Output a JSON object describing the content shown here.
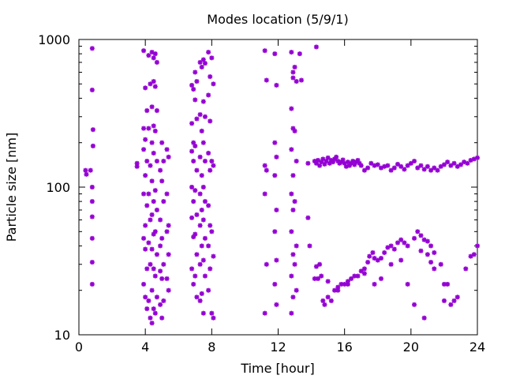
{
  "chart_data": {
    "type": "scatter",
    "title": "Modes location (5/9/1)",
    "xlabel": "Time [hour]",
    "ylabel": "Particle size [nm]",
    "xlim": [
      0,
      24
    ],
    "ylim": [
      10,
      1000
    ],
    "yscale": "log",
    "grid": false,
    "legend": "none",
    "marker_color": "#9400d3",
    "x_ticks": [
      0,
      4,
      8,
      12,
      16,
      20,
      24
    ],
    "x_tick_labels": [
      "0",
      "4",
      "8",
      "12",
      "16",
      "20",
      "24"
    ],
    "y_ticks": [
      10,
      100,
      1000
    ],
    "y_tick_labels": [
      "10",
      "100",
      "1000"
    ],
    "points": [
      [
        0.4,
        130
      ],
      [
        0.45,
        122
      ],
      [
        0.7,
        130
      ],
      [
        0.8,
        870
      ],
      [
        0.8,
        455
      ],
      [
        0.85,
        245
      ],
      [
        0.85,
        190
      ],
      [
        0.8,
        100
      ],
      [
        0.8,
        80
      ],
      [
        0.8,
        63
      ],
      [
        0.8,
        45
      ],
      [
        0.8,
        31
      ],
      [
        0.8,
        22
      ],
      [
        3.5,
        145
      ],
      [
        3.5,
        138
      ],
      [
        3.9,
        840
      ],
      [
        4.0,
        470
      ],
      [
        4.1,
        330
      ],
      [
        3.9,
        250
      ],
      [
        4.0,
        210
      ],
      [
        3.9,
        180
      ],
      [
        4.1,
        150
      ],
      [
        4.0,
        120
      ],
      [
        3.9,
        90
      ],
      [
        4.1,
        75
      ],
      [
        4.0,
        55
      ],
      [
        3.9,
        45
      ],
      [
        4.0,
        38
      ],
      [
        4.1,
        28
      ],
      [
        3.9,
        22
      ],
      [
        4.0,
        18
      ],
      [
        4.1,
        15
      ],
      [
        4.2,
        780
      ],
      [
        4.3,
        500
      ],
      [
        4.2,
        250
      ],
      [
        4.3,
        140
      ],
      [
        4.2,
        90
      ],
      [
        4.3,
        60
      ],
      [
        4.2,
        42
      ],
      [
        4.3,
        30
      ],
      [
        4.2,
        17
      ],
      [
        4.3,
        13
      ],
      [
        4.4,
        820
      ],
      [
        4.5,
        750
      ],
      [
        4.5,
        520
      ],
      [
        4.4,
        350
      ],
      [
        4.5,
        260
      ],
      [
        4.4,
        200
      ],
      [
        4.5,
        170
      ],
      [
        4.4,
        110
      ],
      [
        4.5,
        80
      ],
      [
        4.4,
        65
      ],
      [
        4.5,
        48
      ],
      [
        4.4,
        38
      ],
      [
        4.5,
        28
      ],
      [
        4.4,
        20
      ],
      [
        4.5,
        15
      ],
      [
        4.4,
        12
      ],
      [
        4.6,
        800
      ],
      [
        4.7,
        700
      ],
      [
        4.6,
        480
      ],
      [
        4.7,
        330
      ],
      [
        4.6,
        240
      ],
      [
        4.7,
        150
      ],
      [
        4.6,
        95
      ],
      [
        4.7,
        70
      ],
      [
        4.6,
        50
      ],
      [
        4.7,
        35
      ],
      [
        4.6,
        25
      ],
      [
        4.7,
        18
      ],
      [
        4.6,
        14
      ],
      [
        4.9,
        130
      ],
      [
        4.9,
        60
      ],
      [
        4.9,
        40
      ],
      [
        4.9,
        27
      ],
      [
        4.9,
        16
      ],
      [
        5.0,
        200
      ],
      [
        5.1,
        150
      ],
      [
        5.0,
        110
      ],
      [
        5.1,
        80
      ],
      [
        5.0,
        45
      ],
      [
        5.1,
        30
      ],
      [
        5.0,
        24
      ],
      [
        5.1,
        17
      ],
      [
        5.0,
        13
      ],
      [
        5.3,
        180
      ],
      [
        5.4,
        160
      ],
      [
        5.3,
        90
      ],
      [
        5.4,
        55
      ],
      [
        5.3,
        50
      ],
      [
        5.4,
        35
      ],
      [
        5.3,
        24
      ],
      [
        5.4,
        20
      ],
      [
        6.8,
        490
      ],
      [
        6.9,
        460
      ],
      [
        6.8,
        270
      ],
      [
        6.9,
        200
      ],
      [
        6.8,
        175
      ],
      [
        6.9,
        150
      ],
      [
        6.8,
        100
      ],
      [
        6.9,
        80
      ],
      [
        6.8,
        62
      ],
      [
        6.9,
        46
      ],
      [
        6.8,
        28
      ],
      [
        6.9,
        22
      ],
      [
        7.0,
        600
      ],
      [
        7.1,
        520
      ],
      [
        7.0,
        390
      ],
      [
        7.1,
        290
      ],
      [
        7.0,
        190
      ],
      [
        7.1,
        130
      ],
      [
        7.0,
        95
      ],
      [
        7.1,
        65
      ],
      [
        7.0,
        48
      ],
      [
        7.1,
        35
      ],
      [
        7.0,
        25
      ],
      [
        7.1,
        18
      ],
      [
        7.3,
        700
      ],
      [
        7.4,
        650
      ],
      [
        7.3,
        310
      ],
      [
        7.4,
        240
      ],
      [
        7.3,
        160
      ],
      [
        7.4,
        120
      ],
      [
        7.3,
        90
      ],
      [
        7.4,
        70
      ],
      [
        7.3,
        55
      ],
      [
        7.4,
        40
      ],
      [
        7.3,
        30
      ],
      [
        7.4,
        19
      ],
      [
        7.3,
        17
      ],
      [
        7.5,
        730
      ],
      [
        7.6,
        690
      ],
      [
        7.5,
        380
      ],
      [
        7.6,
        300
      ],
      [
        7.5,
        200
      ],
      [
        7.6,
        150
      ],
      [
        7.5,
        100
      ],
      [
        7.6,
        80
      ],
      [
        7.5,
        60
      ],
      [
        7.6,
        45
      ],
      [
        7.5,
        32
      ],
      [
        7.6,
        25
      ],
      [
        7.5,
        14
      ],
      [
        7.8,
        820
      ],
      [
        7.9,
        560
      ],
      [
        7.8,
        420
      ],
      [
        7.9,
        280
      ],
      [
        7.8,
        170
      ],
      [
        7.9,
        130
      ],
      [
        7.8,
        75
      ],
      [
        7.9,
        55
      ],
      [
        7.8,
        40
      ],
      [
        7.9,
        28
      ],
      [
        7.8,
        20
      ],
      [
        8.0,
        750
      ],
      [
        8.1,
        500
      ],
      [
        8.0,
        150
      ],
      [
        8.1,
        140
      ],
      [
        8.0,
        50
      ],
      [
        8.1,
        34
      ],
      [
        8.0,
        14
      ],
      [
        8.1,
        13
      ],
      [
        11.2,
        840
      ],
      [
        11.3,
        530
      ],
      [
        11.2,
        140
      ],
      [
        11.3,
        130
      ],
      [
        11.2,
        90
      ],
      [
        11.3,
        30
      ],
      [
        11.2,
        14
      ],
      [
        11.8,
        800
      ],
      [
        11.9,
        490
      ],
      [
        11.8,
        200
      ],
      [
        11.9,
        160
      ],
      [
        11.8,
        120
      ],
      [
        11.9,
        70
      ],
      [
        11.8,
        50
      ],
      [
        11.9,
        32
      ],
      [
        11.8,
        22
      ],
      [
        11.9,
        16
      ],
      [
        12.8,
        820
      ],
      [
        12.9,
        600
      ],
      [
        12.9,
        550
      ],
      [
        12.8,
        340
      ],
      [
        12.9,
        250
      ],
      [
        12.8,
        180
      ],
      [
        12.9,
        120
      ],
      [
        12.8,
        90
      ],
      [
        12.9,
        70
      ],
      [
        12.8,
        50
      ],
      [
        12.9,
        35
      ],
      [
        12.8,
        25
      ],
      [
        12.9,
        18
      ],
      [
        12.8,
        14
      ],
      [
        13.0,
        650
      ],
      [
        13.1,
        520
      ],
      [
        13.0,
        240
      ],
      [
        13.1,
        150
      ],
      [
        13.0,
        80
      ],
      [
        13.1,
        40
      ],
      [
        13.0,
        30
      ],
      [
        13.1,
        20
      ],
      [
        13.3,
        800
      ],
      [
        13.4,
        530
      ],
      [
        13.8,
        145
      ],
      [
        13.8,
        62
      ],
      [
        13.9,
        40
      ],
      [
        14.3,
        890
      ],
      [
        14.2,
        150
      ],
      [
        14.3,
        145
      ],
      [
        14.4,
        152
      ],
      [
        14.5,
        140
      ],
      [
        14.6,
        148
      ],
      [
        14.7,
        155
      ],
      [
        14.8,
        143
      ],
      [
        14.9,
        150
      ],
      [
        15.0,
        158
      ],
      [
        15.1,
        145
      ],
      [
        15.2,
        152
      ],
      [
        15.3,
        148
      ],
      [
        15.4,
        155
      ],
      [
        15.5,
        160
      ],
      [
        15.6,
        150
      ],
      [
        15.7,
        145
      ],
      [
        15.8,
        148
      ],
      [
        15.9,
        153
      ],
      [
        16.0,
        145
      ],
      [
        16.1,
        138
      ],
      [
        16.2,
        148
      ],
      [
        16.3,
        140
      ],
      [
        16.4,
        145
      ],
      [
        16.5,
        150
      ],
      [
        16.6,
        142
      ],
      [
        16.7,
        148
      ],
      [
        16.8,
        152
      ],
      [
        16.9,
        145
      ],
      [
        17.0,
        140
      ],
      [
        17.2,
        130
      ],
      [
        17.4,
        135
      ],
      [
        17.6,
        145
      ],
      [
        17.8,
        140
      ],
      [
        18.0,
        142
      ],
      [
        18.2,
        135
      ],
      [
        18.4,
        138
      ],
      [
        18.6,
        140
      ],
      [
        18.8,
        130
      ],
      [
        19.0,
        135
      ],
      [
        19.2,
        143
      ],
      [
        19.4,
        138
      ],
      [
        19.6,
        132
      ],
      [
        19.8,
        140
      ],
      [
        20.0,
        145
      ],
      [
        20.2,
        150
      ],
      [
        20.4,
        135
      ],
      [
        20.6,
        140
      ],
      [
        20.8,
        132
      ],
      [
        21.0,
        138
      ],
      [
        21.2,
        130
      ],
      [
        21.4,
        135
      ],
      [
        21.6,
        130
      ],
      [
        21.8,
        138
      ],
      [
        22.0,
        142
      ],
      [
        22.2,
        148
      ],
      [
        22.4,
        140
      ],
      [
        22.6,
        145
      ],
      [
        22.8,
        138
      ],
      [
        23.0,
        142
      ],
      [
        23.2,
        148
      ],
      [
        23.4,
        145
      ],
      [
        23.6,
        152
      ],
      [
        23.8,
        155
      ],
      [
        24.0,
        158
      ],
      [
        14.2,
        24
      ],
      [
        14.4,
        24
      ],
      [
        14.6,
        25
      ],
      [
        14.7,
        17
      ],
      [
        14.8,
        16
      ],
      [
        15.0,
        18
      ],
      [
        15.2,
        17
      ],
      [
        15.4,
        20
      ],
      [
        15.6,
        21
      ],
      [
        15.8,
        22
      ],
      [
        16.0,
        22
      ],
      [
        16.2,
        23
      ],
      [
        16.4,
        24
      ],
      [
        16.6,
        25
      ],
      [
        16.8,
        25
      ],
      [
        17.0,
        27
      ],
      [
        17.2,
        28
      ],
      [
        17.4,
        31
      ],
      [
        17.5,
        34
      ],
      [
        17.7,
        36
      ],
      [
        17.8,
        33
      ],
      [
        18.0,
        32
      ],
      [
        18.2,
        33
      ],
      [
        18.4,
        36
      ],
      [
        18.6,
        39
      ],
      [
        18.8,
        40
      ],
      [
        19.0,
        38
      ],
      [
        19.2,
        42
      ],
      [
        19.4,
        44
      ],
      [
        19.6,
        42
      ],
      [
        19.8,
        40
      ],
      [
        20.2,
        45
      ],
      [
        20.4,
        50
      ],
      [
        20.6,
        47
      ],
      [
        20.8,
        44
      ],
      [
        21.0,
        43
      ],
      [
        21.2,
        40
      ],
      [
        21.4,
        36
      ],
      [
        14.3,
        29
      ],
      [
        14.5,
        30
      ],
      [
        15.0,
        23
      ],
      [
        15.6,
        20
      ],
      [
        16.2,
        22
      ],
      [
        17.2,
        26
      ],
      [
        17.8,
        22
      ],
      [
        18.2,
        24
      ],
      [
        18.8,
        30
      ],
      [
        19.4,
        32
      ],
      [
        19.8,
        22
      ],
      [
        20.2,
        16
      ],
      [
        20.6,
        37
      ],
      [
        21.0,
        35
      ],
      [
        21.2,
        31
      ],
      [
        21.4,
        28
      ],
      [
        21.8,
        30
      ],
      [
        22.0,
        22
      ],
      [
        22.2,
        22
      ],
      [
        22.4,
        16
      ],
      [
        22.6,
        17
      ],
      [
        22.8,
        18
      ],
      [
        23.3,
        28
      ],
      [
        23.6,
        34
      ],
      [
        23.8,
        35
      ],
      [
        24.0,
        40
      ],
      [
        20.8,
        13
      ],
      [
        22.0,
        17
      ]
    ]
  }
}
